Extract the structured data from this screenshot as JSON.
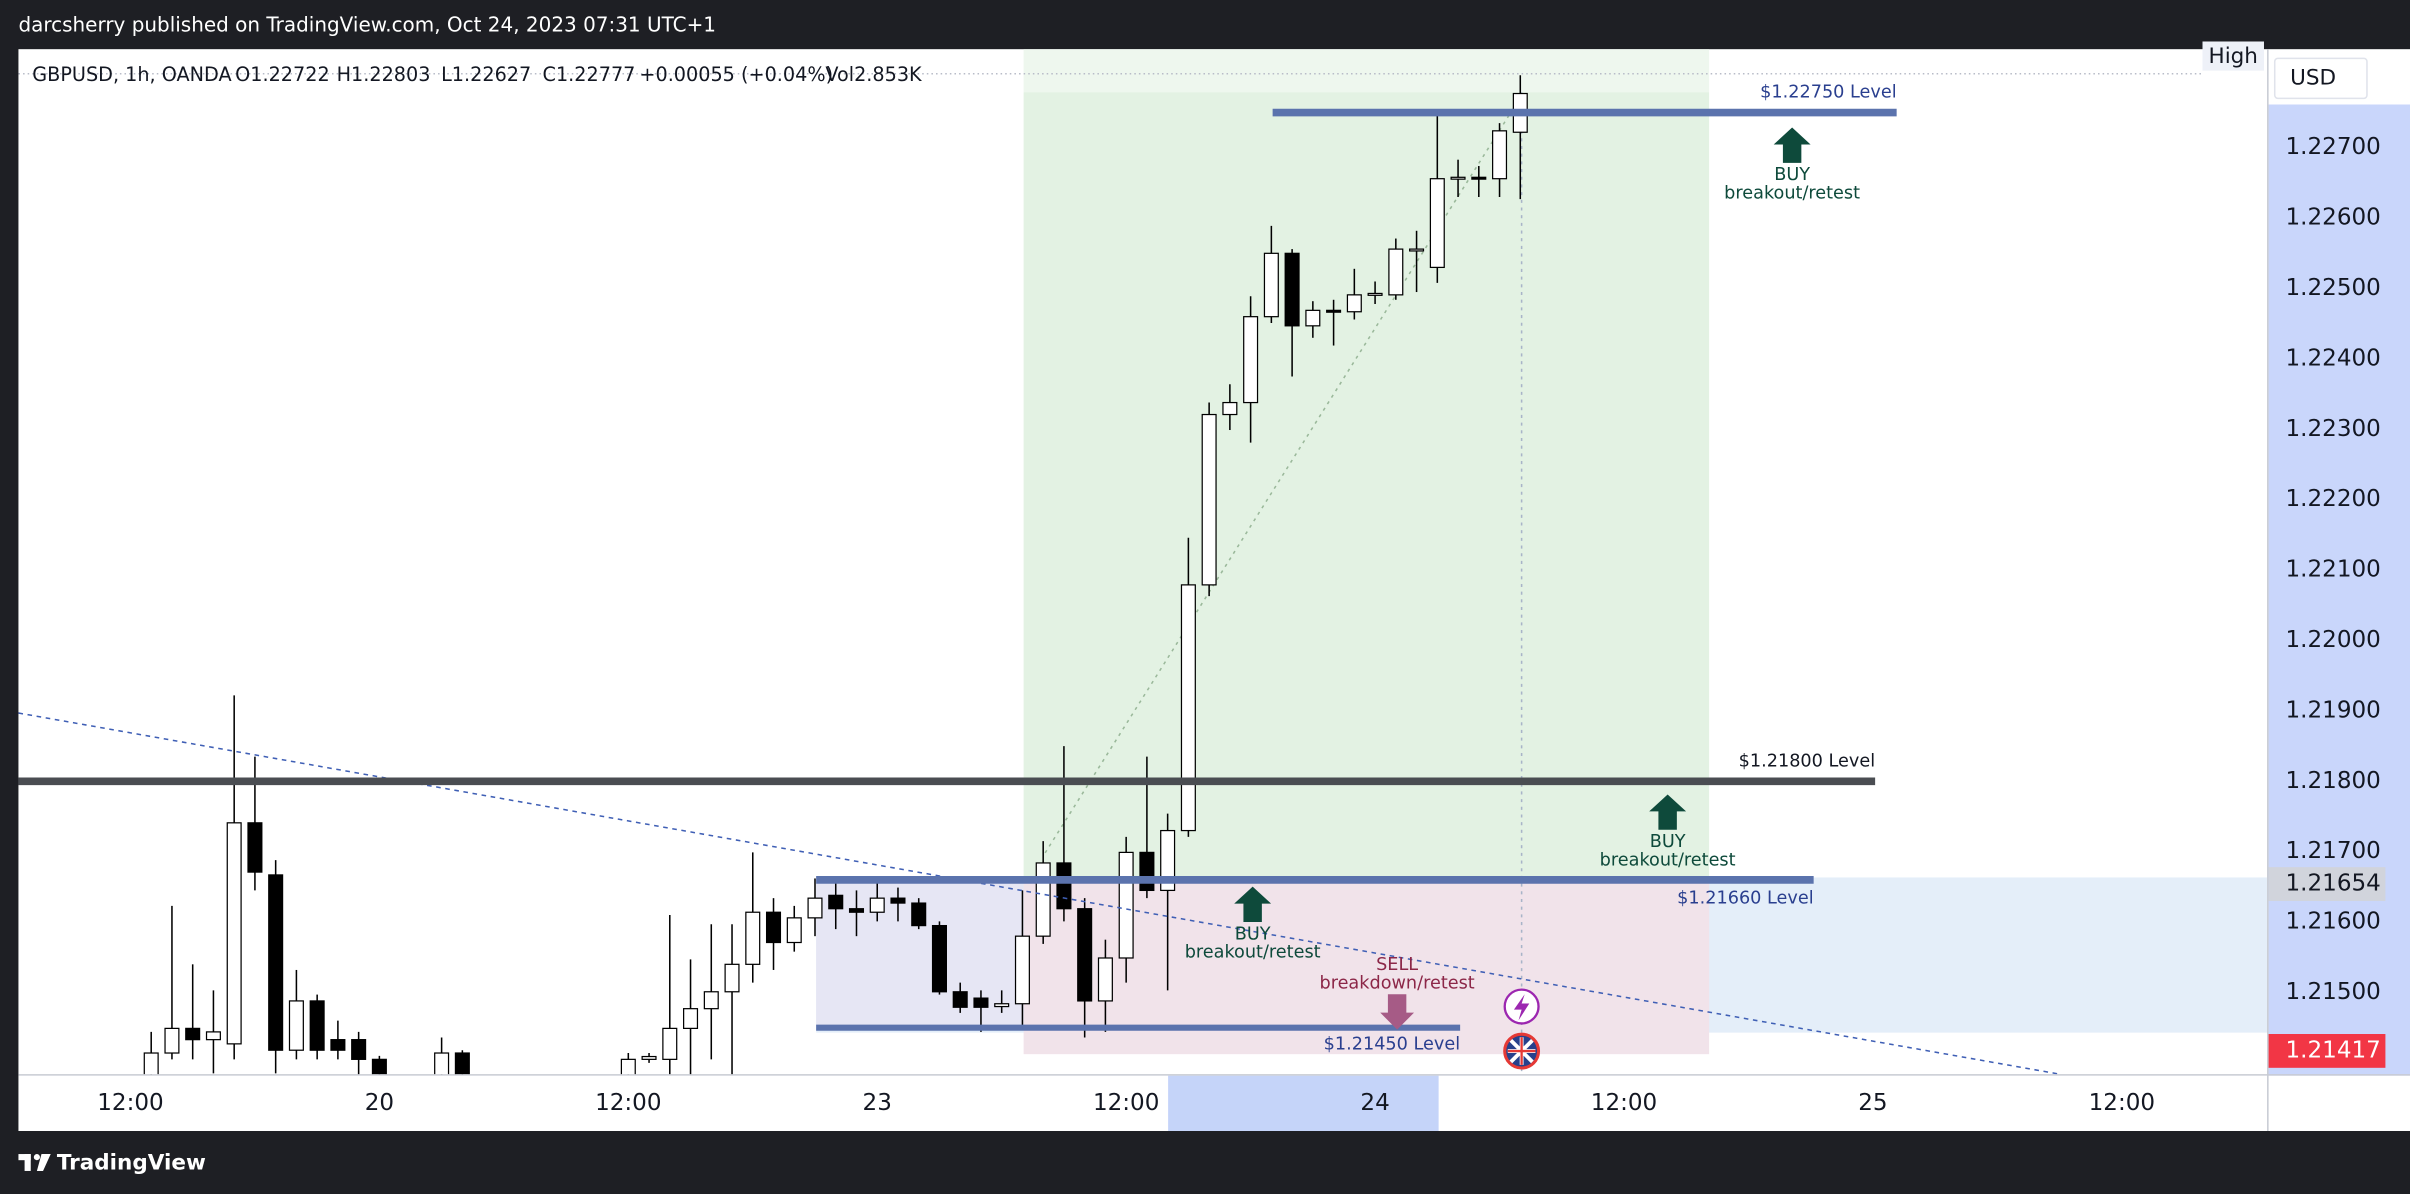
{
  "published": "darcsherry published on TradingView.com, Oct 24, 2023 07:31 UTC+1",
  "brand": "TradingView",
  "chart_data": {
    "type": "candlestick",
    "legend": {
      "symbol": "GBPUSD, 1h, OANDA",
      "open": "O1.22722",
      "high": "H1.22803",
      "low": "L1.22627",
      "close": "C1.22777",
      "change": "+0.00055 (+0.04%)",
      "volume": "Vol2.853K"
    },
    "currency": "USD",
    "high_label": "High",
    "xlim": [
      -5.4,
      103
    ],
    "xticks": [
      {
        "value": 0,
        "label": "12:00"
      },
      {
        "value": 12,
        "label": "20"
      },
      {
        "value": 24,
        "label": "12:00"
      },
      {
        "value": 36,
        "label": "23"
      },
      {
        "value": 48,
        "label": "12:00"
      },
      {
        "value": 60,
        "label": "24"
      },
      {
        "value": 72,
        "label": "12:00"
      },
      {
        "value": 84,
        "label": "25"
      },
      {
        "value": 96,
        "label": "12:00"
      }
    ],
    "ylim": [
      1.21384,
      1.2284
    ],
    "yticks": [
      {
        "value": 1.215,
        "label": "1.21500"
      },
      {
        "value": 1.216,
        "label": "1.21600"
      },
      {
        "value": 1.217,
        "label": "1.21700"
      },
      {
        "value": 1.218,
        "label": "1.21800"
      },
      {
        "value": 1.219,
        "label": "1.21900"
      },
      {
        "value": 1.22,
        "label": "1.22000"
      },
      {
        "value": 1.221,
        "label": "1.22100"
      },
      {
        "value": 1.222,
        "label": "1.22200"
      },
      {
        "value": 1.223,
        "label": "1.22300"
      },
      {
        "value": 1.224,
        "label": "1.22400"
      },
      {
        "value": 1.225,
        "label": "1.22500"
      },
      {
        "value": 1.226,
        "label": "1.22600"
      },
      {
        "value": 1.227,
        "label": "1.22700"
      }
    ],
    "grid": false,
    "up_color": "#ffffff",
    "down_color": "#000000",
    "series": [
      {
        "name": "GBPUSD",
        "x": [
          1,
          2,
          3,
          4,
          5,
          6,
          7,
          8,
          9,
          10,
          11,
          12,
          15,
          16,
          24,
          25,
          26,
          27,
          28,
          29,
          30,
          31,
          32,
          33,
          34,
          35,
          36,
          37,
          38,
          39,
          40,
          41,
          42,
          43,
          44,
          45,
          46,
          47,
          48,
          49,
          50,
          51,
          52,
          53,
          54,
          55,
          56,
          57,
          58,
          59,
          60,
          61,
          62,
          63,
          64,
          65,
          66,
          67
        ],
        "open": [
          1.2138,
          1.21414,
          1.21449,
          1.21433,
          1.21427,
          1.21741,
          1.21667,
          1.21418,
          1.21488,
          1.21433,
          1.21433,
          1.21405,
          1.2138,
          1.21414,
          1.2138,
          1.21405,
          1.21405,
          1.21449,
          1.21477,
          1.21501,
          1.2154,
          1.21614,
          1.21571,
          1.21606,
          1.21638,
          1.21619,
          1.21614,
          1.21634,
          1.21627,
          1.21595,
          1.21501,
          1.21492,
          1.2148,
          1.21484,
          1.2158,
          1.21684,
          1.21619,
          1.21488,
          1.21549,
          1.21699,
          1.21645,
          1.2173,
          1.22079,
          1.22321,
          1.22338,
          1.2246,
          1.2255,
          1.22447,
          1.22469,
          1.22467,
          1.22491,
          1.22491,
          1.22556,
          1.2253,
          1.22656,
          1.22658,
          1.22656,
          1.22722
        ],
        "high": [
          1.21444,
          1.21623,
          1.2154,
          1.21503,
          1.21922,
          1.21835,
          1.21688,
          1.21532,
          1.21497,
          1.2146,
          1.21444,
          1.2141,
          1.21436,
          1.21418,
          1.21414,
          1.21414,
          1.2161,
          1.21547,
          1.21597,
          1.21597,
          1.21699,
          1.21634,
          1.21623,
          1.21662,
          1.21662,
          1.21645,
          1.21662,
          1.21649,
          1.21634,
          1.21601,
          1.21514,
          1.21503,
          1.21503,
          1.21645,
          1.21715,
          1.2185,
          1.21634,
          1.21575,
          1.21721,
          1.21835,
          1.21754,
          1.22146,
          1.22338,
          1.22364,
          1.22489,
          1.22589,
          1.22556,
          1.22482,
          1.22484,
          1.22528,
          1.2251,
          1.22571,
          1.22582,
          1.22748,
          1.22683,
          1.22674,
          1.22735,
          1.22803
        ],
        "low": [
          1.2136,
          1.21405,
          1.21405,
          1.21385,
          1.21405,
          1.21645,
          1.21385,
          1.21405,
          1.21405,
          1.21405,
          1.2137,
          1.2136,
          1.2136,
          1.2136,
          1.2136,
          1.214,
          1.2137,
          1.2138,
          1.21405,
          1.2137,
          1.21514,
          1.21532,
          1.21558,
          1.2158,
          1.2159,
          1.2158,
          1.21601,
          1.21601,
          1.2159,
          1.21497,
          1.21471,
          1.21444,
          1.21471,
          1.21453,
          1.21569,
          1.21601,
          1.21436,
          1.21444,
          1.21514,
          1.21634,
          1.21503,
          1.21721,
          1.22063,
          1.22299,
          1.22281,
          1.22451,
          1.22375,
          1.2243,
          1.22419,
          1.22456,
          1.22478,
          1.22484,
          1.22495,
          1.22508,
          1.2263,
          1.2263,
          1.2263,
          1.22627
        ],
        "close": [
          1.21414,
          1.21449,
          1.21433,
          1.21444,
          1.21741,
          1.21671,
          1.21418,
          1.21488,
          1.21418,
          1.21418,
          1.21405,
          1.2138,
          1.21414,
          1.2138,
          1.21405,
          1.21409,
          1.21449,
          1.21477,
          1.21501,
          1.2154,
          1.21614,
          1.21571,
          1.21606,
          1.21634,
          1.21619,
          1.21614,
          1.21634,
          1.21627,
          1.21595,
          1.21501,
          1.21479,
          1.21479,
          1.21484,
          1.2158,
          1.21684,
          1.21619,
          1.21488,
          1.21549,
          1.21699,
          1.21645,
          1.2173,
          1.22079,
          1.22321,
          1.22338,
          1.2246,
          1.2255,
          1.22447,
          1.22469,
          1.22467,
          1.22491,
          1.22493,
          1.22556,
          1.22556,
          1.22656,
          1.22658,
          1.22656,
          1.22724,
          1.22777
        ]
      }
    ],
    "price_markers": [
      {
        "value": 1.21654,
        "color": "#d1d4dc",
        "text_color": "#131722"
      },
      {
        "value": 1.21417,
        "color": "#f23645",
        "text_color": "#ffffff"
      }
    ],
    "levels": [
      {
        "value": 1.2275,
        "label": "$1.22750 Level",
        "color": "#5b73ad"
      },
      {
        "value": 1.218,
        "label": "$1.21800 Level",
        "color": "#4a4d52"
      },
      {
        "value": 1.2166,
        "label": "$1.21660 Level",
        "color": "#5b73ad"
      },
      {
        "value": 1.2145,
        "label": "$1.21450 Level",
        "color": "#5b73ad"
      }
    ],
    "annotations": [
      {
        "title": "BUY",
        "subtitle": "breakout/retest"
      },
      {
        "title": "BUY",
        "subtitle": "breakout/retest"
      },
      {
        "title": "BUY",
        "subtitle": "breakout/retest"
      },
      {
        "title": "SELL",
        "subtitle": "breakdown/retest"
      }
    ]
  }
}
